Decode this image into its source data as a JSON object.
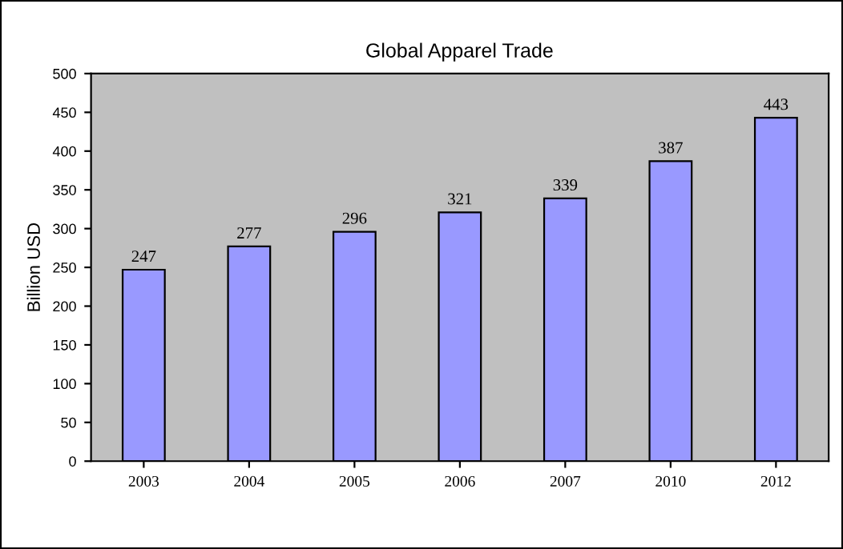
{
  "chart_data": {
    "type": "bar",
    "title": "Global Apparel Trade",
    "ylabel": "Billion USD",
    "categories": [
      "2003",
      "2004",
      "2005",
      "2006",
      "2007",
      "2010",
      "2012"
    ],
    "values": [
      247,
      277,
      296,
      321,
      339,
      387,
      443
    ],
    "color": "#9999ff",
    "ylim": [
      0,
      500
    ],
    "yticks": [
      0,
      50,
      100,
      150,
      200,
      250,
      300,
      350,
      400,
      450,
      500
    ],
    "grid": false,
    "data_labels": true
  }
}
